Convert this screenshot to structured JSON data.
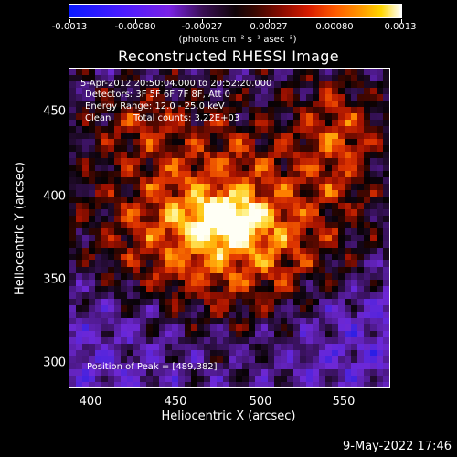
{
  "colorbar": {
    "tick_labels": [
      "-0.0013",
      "-0.00080",
      "-0.00027",
      "0.00027",
      "0.00080",
      "0.0013"
    ],
    "units": "(photons cm⁻² s⁻¹ asec⁻²)"
  },
  "title": "Reconstructed RHESSI Image",
  "info": {
    "time_range": "5-Apr-2012 20:50:04.000 to 20:52:20.000",
    "detectors": "Detectors: 3F 5F 6F 7F 8F, Att 0",
    "energy": "Energy Range: 12.0 - 25.0 keV",
    "method": "Clean",
    "total_counts": "Total counts: 3.22E+03",
    "peak": "Position of Peak = [489,382]"
  },
  "axes": {
    "x_title": "Heliocentric X (arcsec)",
    "y_title": "Heliocentric Y (arcsec)",
    "x_ticks": [
      "400",
      "450",
      "500",
      "550"
    ],
    "y_ticks": [
      "450",
      "400",
      "350",
      "300"
    ]
  },
  "timestamp": "9-May-2022 17:46",
  "colors": {
    "background": "#000000",
    "text": "#ffffff"
  }
}
